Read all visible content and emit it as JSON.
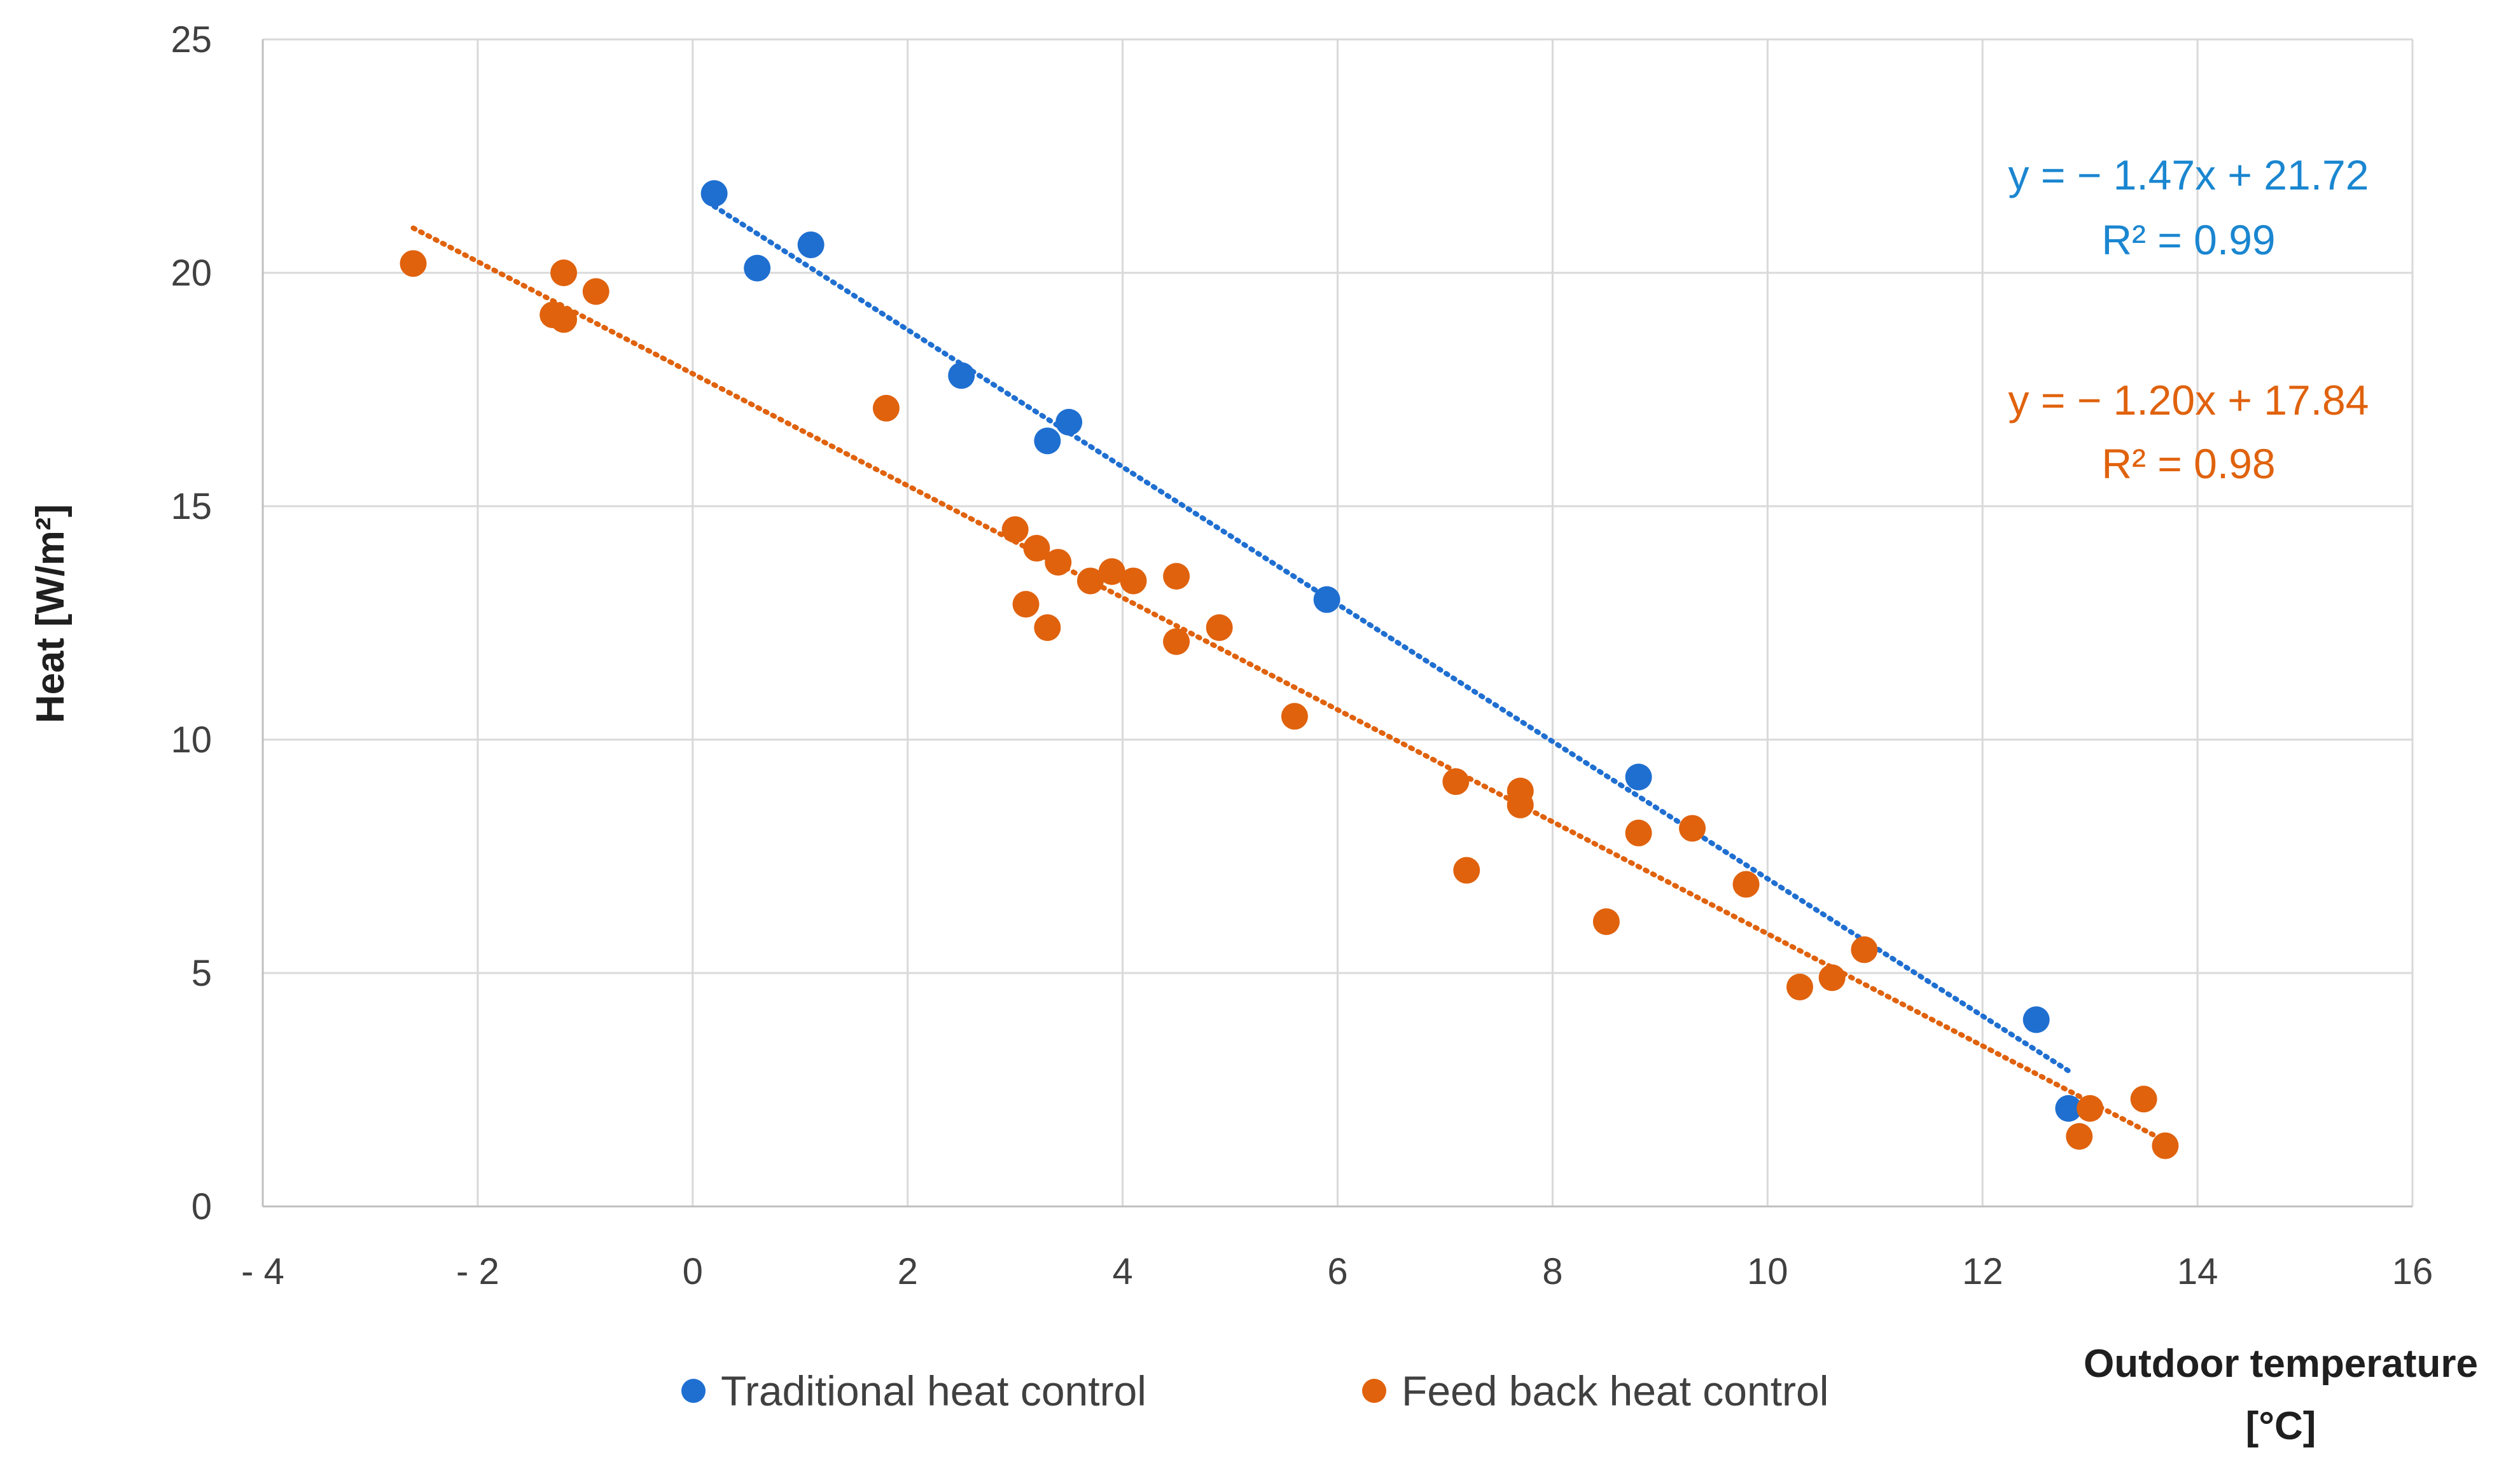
{
  "chart_data": {
    "type": "scatter",
    "title": "",
    "xlabel": "Outdoor temperature [°C]",
    "xlabel_lines": [
      "Outdoor temperature",
      "[°C]"
    ],
    "ylabel": "Heat  [W/m²]",
    "xlim": [
      -4,
      16
    ],
    "ylim": [
      0,
      25
    ],
    "x_ticks": [
      -4,
      -2,
      0,
      2,
      4,
      6,
      8,
      10,
      12,
      14,
      16
    ],
    "x_tick_labels": [
      "- 4",
      "- 2",
      "0",
      "2",
      "4",
      "6",
      "8",
      "10",
      "12",
      "14",
      "16"
    ],
    "y_ticks": [
      0,
      5,
      10,
      15,
      20,
      25
    ],
    "y_tick_labels": [
      "0",
      "5",
      "10",
      "15",
      "20",
      "25"
    ],
    "grid": true,
    "legend_position": "bottom",
    "series": [
      {
        "name": "Traditional heat control",
        "color": "#1f6fd1",
        "x": [
          0.2,
          0.6,
          1.1,
          2.5,
          3.3,
          3.5,
          5.9,
          8.8,
          12.5,
          12.8
        ],
        "y": [
          21.7,
          20.1,
          20.6,
          17.8,
          16.4,
          16.8,
          13.0,
          9.2,
          4.0,
          2.1
        ],
        "trendline": {
          "slope": -1.47,
          "intercept": 21.72,
          "x_range": [
            0.2,
            12.8
          ],
          "equation": "y =  − 1.47x + 21.72",
          "r2": "R² = 0.99"
        }
      },
      {
        "name": "Feed back heat control",
        "color": "#e0620d",
        "x": [
          -2.6,
          -1.2,
          -1.3,
          -1.2,
          -0.9,
          1.8,
          3.0,
          3.2,
          3.4,
          3.1,
          3.3,
          3.7,
          3.9,
          4.1,
          4.5,
          4.5,
          4.9,
          5.6,
          7.1,
          7.2,
          7.7,
          7.7,
          8.5,
          8.8,
          9.3,
          9.8,
          10.3,
          10.6,
          10.9,
          12.9,
          13.0,
          13.5,
          13.7
        ],
        "y": [
          20.2,
          20.0,
          19.1,
          19.0,
          19.6,
          17.1,
          14.5,
          14.1,
          13.8,
          12.9,
          12.4,
          13.4,
          13.6,
          13.4,
          13.5,
          12.1,
          12.4,
          10.5,
          9.1,
          7.2,
          8.9,
          8.6,
          6.1,
          8.0,
          8.1,
          6.9,
          4.7,
          4.9,
          5.5,
          1.5,
          2.1,
          2.3,
          1.3
        ],
        "trendline": {
          "slope": -1.2,
          "intercept": 17.84,
          "x_range": [
            -2.6,
            13.7
          ],
          "equation": "y = − 1.20x + 17.84",
          "r2": "R² = 0.98"
        }
      }
    ]
  }
}
